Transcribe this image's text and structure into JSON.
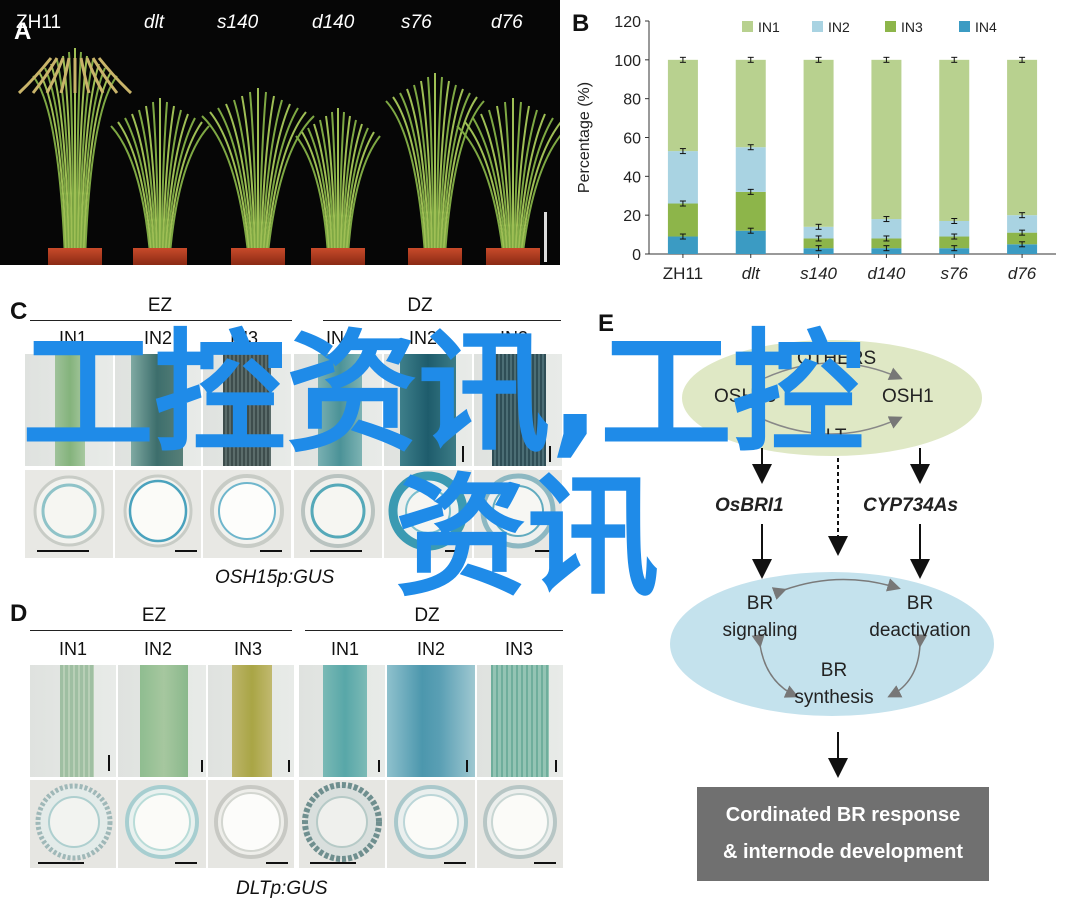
{
  "panel_labels": {
    "a": "A",
    "b": "B",
    "c": "C",
    "d": "D",
    "e": "E"
  },
  "panel_a": {
    "genotypes": [
      "ZH11",
      "dlt",
      "s140",
      "d140",
      "s76",
      "d76"
    ]
  },
  "chart_data": {
    "type": "bar",
    "stacked": true,
    "categories": [
      "ZH11",
      "dlt",
      "s140",
      "d140",
      "s76",
      "d76"
    ],
    "ylabel": "Percentage (%)",
    "xlabel": "",
    "ylim": [
      0,
      120
    ],
    "yticks": [
      0,
      20,
      40,
      60,
      80,
      100,
      120
    ],
    "legend_position": "top",
    "series": [
      {
        "name": "IN4",
        "color": "#3b9bc3",
        "values": [
          9,
          12,
          3,
          3,
          3,
          5
        ]
      },
      {
        "name": "IN3",
        "color": "#8db54a",
        "values": [
          17,
          20,
          5,
          5,
          6,
          6
        ]
      },
      {
        "name": "IN2",
        "color": "#a9d3e2",
        "values": [
          27,
          23,
          6,
          10,
          8,
          9
        ]
      },
      {
        "name": "IN1",
        "color": "#b8d18f",
        "values": [
          47,
          45,
          86,
          82,
          83,
          80
        ]
      }
    ],
    "error_bar_levels": [
      [
        9,
        26,
        53,
        100
      ],
      [
        12,
        32,
        55,
        100
      ],
      [
        3,
        8,
        14,
        100
      ],
      [
        3,
        8,
        18,
        100
      ],
      [
        3,
        9,
        17,
        100
      ],
      [
        5,
        11,
        20,
        100
      ]
    ]
  },
  "panel_c": {
    "ez_label": "EZ",
    "dz_label": "DZ",
    "internodes": [
      "IN1",
      "IN2",
      "IN3",
      "IN1",
      "IN2",
      "IN3"
    ],
    "caption": "OSH15p:GUS"
  },
  "panel_d": {
    "ez_label": "EZ",
    "dz_label": "DZ",
    "internodes": [
      "IN1",
      "IN2",
      "IN3",
      "IN1",
      "IN2",
      "IN3"
    ],
    "caption": "DLTp:GUS"
  },
  "panel_e": {
    "top_nodes": {
      "others": "OTHERS",
      "osh15": "OSH15",
      "osh1": "OSH1",
      "dlt": "DLT"
    },
    "gene_left": "OsBRI1",
    "gene_right": "CYP734As",
    "br_signaling": [
      "BR",
      "signaling"
    ],
    "br_deactivation": [
      "BR",
      "deactivation"
    ],
    "br_synthesis": [
      "BR",
      "synthesis"
    ],
    "result": [
      "Cordinated BR response",
      "& internode development"
    ]
  },
  "watermark": {
    "line1": "工控资讯,工控",
    "line2": "资讯",
    "color": "#1f8be8"
  }
}
